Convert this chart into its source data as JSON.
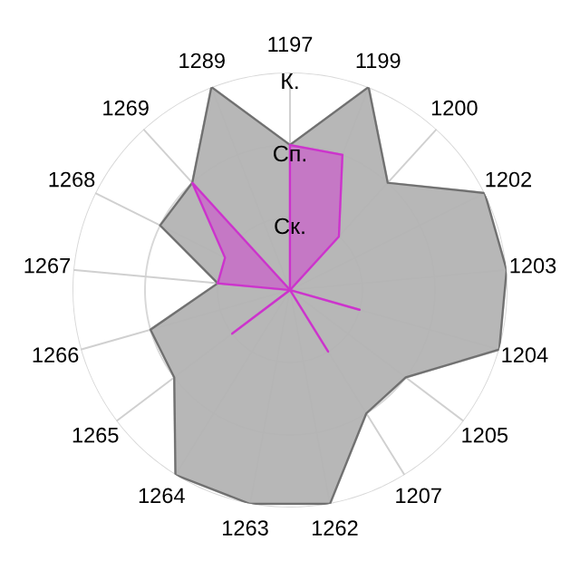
{
  "chart_data": {
    "type": "radar",
    "categories": [
      "1197",
      "1199",
      "1200",
      "1202",
      "1203",
      "1204",
      "1205",
      "1207",
      "1262",
      "1263",
      "1264",
      "1265",
      "1266",
      "1267",
      "1268",
      "1269",
      "1289"
    ],
    "series": [
      {
        "color": "#b4b4b4",
        "values": [
          2,
          3,
          2,
          3,
          3,
          3,
          2,
          2,
          3,
          3,
          3,
          2,
          2,
          1,
          2,
          2,
          3
        ]
      },
      {
        "color": "#c86ec8",
        "values": [
          2,
          2,
          1,
          0,
          0,
          1,
          0,
          1,
          0,
          0,
          0,
          1,
          0,
          1,
          1,
          2,
          0
        ]
      }
    ],
    "ylim": [
      0,
      3
    ],
    "yticks": [
      {
        "value": 1,
        "label": "Ск."
      },
      {
        "value": 2,
        "label": "Сп."
      },
      {
        "value": 3,
        "label": "К."
      }
    ],
    "grid": true
  }
}
